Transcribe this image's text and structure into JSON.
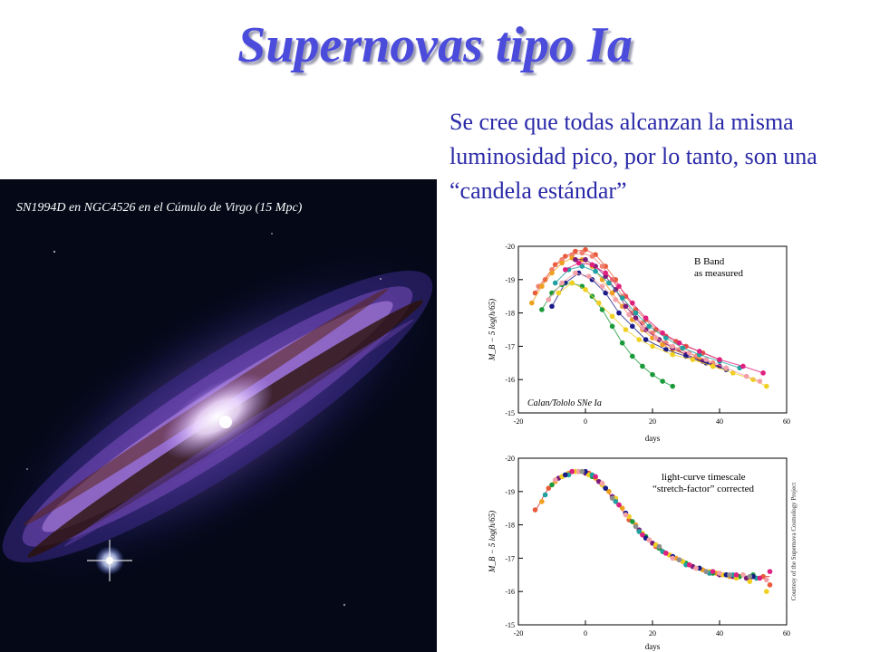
{
  "slide": {
    "title": "Supernovas tipo Ia",
    "intro": "Se cree que todas alcanzan la misma luminosidad pico, por lo tanto, son una “candela estándar”"
  },
  "galaxy_image": {
    "caption": "SN1994D en NGC4526 en el Cúmulo de Virgo (15 Mpc)"
  },
  "credit": "Courtesy of the Supernova Cosmology Project",
  "chart_data": [
    {
      "type": "scatter",
      "xlabel": "days",
      "ylabel": "M_B − 5 log(h/65)",
      "xlim": [
        -20,
        60
      ],
      "ylim": [
        -20,
        -15
      ],
      "y_inverted": true,
      "xticks": [
        "-20",
        "0",
        "20",
        "40",
        "60"
      ],
      "yticks": [
        "-20",
        "-19",
        "-18",
        "-17",
        "-16",
        "-15"
      ],
      "annotation": [
        "B Band",
        "as measured"
      ],
      "footer_label": "Calan/Tololo SNe Ia",
      "series": [
        {
          "color": "#e85a3c",
          "x": [
            -15,
            -12,
            -9,
            -6,
            -3,
            0,
            3,
            6,
            9,
            12,
            15,
            18,
            21,
            24,
            27,
            30,
            35,
            40
          ],
          "y": [
            -18.6,
            -19.0,
            -19.45,
            -19.7,
            -19.85,
            -19.9,
            -19.75,
            -19.4,
            -19.0,
            -18.5,
            -18.1,
            -17.8,
            -17.5,
            -17.3,
            -17.15,
            -17.0,
            -16.8,
            -16.6
          ]
        },
        {
          "color": "#f08070",
          "x": [
            -14,
            -10,
            -7,
            -4,
            -1,
            2,
            5,
            8,
            11,
            14,
            17,
            20,
            24,
            28,
            33,
            38
          ],
          "y": [
            -18.8,
            -19.3,
            -19.6,
            -19.75,
            -19.8,
            -19.7,
            -19.4,
            -19.0,
            -18.5,
            -18.0,
            -17.7,
            -17.4,
            -17.1,
            -16.9,
            -16.7,
            -16.5
          ]
        },
        {
          "color": "#f0a020",
          "x": [
            -16,
            -13,
            -10,
            -7,
            -4,
            -1,
            2,
            5,
            8,
            11,
            14,
            17,
            20,
            23,
            26,
            30,
            34,
            38
          ],
          "y": [
            -18.3,
            -18.8,
            -19.2,
            -19.5,
            -19.65,
            -19.6,
            -19.4,
            -19.0,
            -18.6,
            -18.2,
            -17.8,
            -17.5,
            -17.25,
            -17.05,
            -16.9,
            -16.75,
            -16.6,
            -16.4
          ]
        },
        {
          "color": "#7a1a7a",
          "x": [
            -3,
            0,
            3,
            6,
            9,
            12,
            15,
            18,
            22,
            26,
            30,
            35,
            40
          ],
          "y": [
            -19.6,
            -19.6,
            -19.4,
            -19.1,
            -18.7,
            -18.2,
            -17.85,
            -17.5,
            -17.2,
            -16.95,
            -16.75,
            -16.55,
            -16.4
          ]
        },
        {
          "color": "#1a1a8a",
          "x": [
            -10,
            -6,
            -2,
            2,
            6,
            10,
            14,
            18,
            24,
            30,
            36,
            42
          ],
          "y": [
            -18.2,
            -18.9,
            -19.2,
            -19.0,
            -18.6,
            -18.0,
            -17.6,
            -17.2,
            -16.9,
            -16.7,
            -16.5,
            -16.3
          ]
        },
        {
          "color": "#1a9a3a",
          "x": [
            -13,
            -10,
            -7,
            -4,
            -1,
            2,
            5,
            8,
            11,
            14,
            17,
            20,
            23,
            26
          ],
          "y": [
            -18.1,
            -18.6,
            -18.85,
            -18.9,
            -18.8,
            -18.5,
            -18.1,
            -17.6,
            -17.1,
            -16.7,
            -16.4,
            -16.15,
            -15.95,
            -15.8
          ]
        },
        {
          "color": "#f0d020",
          "x": [
            -8,
            -4,
            0,
            4,
            8,
            12,
            16,
            20,
            26,
            32,
            38,
            44,
            50,
            54
          ],
          "y": [
            -18.6,
            -18.9,
            -18.7,
            -18.3,
            -17.9,
            -17.5,
            -17.2,
            -17.0,
            -16.75,
            -16.6,
            -16.4,
            -16.2,
            -16.0,
            -15.8
          ]
        },
        {
          "color": "#f4a0a8",
          "x": [
            -11,
            -7,
            -3,
            1,
            5,
            9,
            13,
            17,
            21,
            26,
            31,
            36,
            42,
            48,
            52
          ],
          "y": [
            -18.4,
            -18.9,
            -19.2,
            -19.1,
            -18.8,
            -18.4,
            -17.95,
            -17.55,
            -17.25,
            -17.0,
            -16.8,
            -16.6,
            -16.35,
            -16.1,
            -15.95
          ]
        },
        {
          "color": "#20a0a0",
          "x": [
            -9,
            -5,
            -1,
            3,
            7,
            11,
            15,
            19,
            24,
            29,
            34,
            40,
            46
          ],
          "y": [
            -18.9,
            -19.3,
            -19.4,
            -19.25,
            -18.9,
            -18.45,
            -18.0,
            -17.6,
            -17.25,
            -16.95,
            -16.75,
            -16.55,
            -16.35
          ]
        },
        {
          "color": "#e02080",
          "x": [
            -6,
            -2,
            2,
            6,
            10,
            14,
            18,
            23,
            28,
            34,
            40,
            47,
            53
          ],
          "y": [
            -19.3,
            -19.5,
            -19.45,
            -19.2,
            -18.8,
            -18.3,
            -17.85,
            -17.4,
            -17.1,
            -16.85,
            -16.6,
            -16.4,
            -16.2
          ]
        }
      ]
    },
    {
      "type": "scatter",
      "xlabel": "days",
      "ylabel": "M_B − 5 log(h/65)",
      "xlim": [
        -20,
        60
      ],
      "ylim": [
        -20,
        -15
      ],
      "y_inverted": true,
      "xticks": [
        "-20",
        "0",
        "20",
        "40",
        "60"
      ],
      "yticks": [
        "-20",
        "-19",
        "-18",
        "-17",
        "-16",
        "-15"
      ],
      "annotation": [
        "light-curve timescale",
        "“stretch-factor” corrected"
      ],
      "curve": {
        "color": "#e05050",
        "x": [
          -15,
          -12,
          -9,
          -6,
          -3,
          0,
          3,
          6,
          9,
          12,
          15,
          18,
          21,
          24,
          27,
          30,
          34,
          38,
          42,
          46,
          50,
          55
        ],
        "y": [
          -18.4,
          -18.95,
          -19.35,
          -19.55,
          -19.62,
          -19.55,
          -19.35,
          -19.05,
          -18.7,
          -18.3,
          -17.95,
          -17.65,
          -17.4,
          -17.2,
          -17.0,
          -16.85,
          -16.7,
          -16.55,
          -16.5,
          -16.45,
          -16.45,
          -16.45
        ]
      },
      "series": [
        {
          "color": "#e85a3c",
          "x": [
            -15,
            -11,
            -7,
            -3,
            1,
            5,
            9,
            13,
            17,
            21,
            25,
            29,
            33,
            37,
            41,
            45,
            49,
            53,
            55
          ],
          "y": [
            -18.45,
            -19.1,
            -19.45,
            -19.6,
            -19.55,
            -19.2,
            -18.75,
            -18.15,
            -17.7,
            -17.35,
            -17.1,
            -16.9,
            -16.7,
            -16.55,
            -16.5,
            -16.45,
            -16.4,
            -16.45,
            -16.2
          ]
        },
        {
          "color": "#f0a020",
          "x": [
            -13,
            -9,
            -5,
            -1,
            3,
            7,
            11,
            15,
            19,
            23,
            27,
            31,
            35,
            39,
            43,
            47,
            51
          ],
          "y": [
            -18.7,
            -19.3,
            -19.55,
            -19.6,
            -19.4,
            -19.0,
            -18.5,
            -18.0,
            -17.55,
            -17.2,
            -17.0,
            -16.8,
            -16.65,
            -16.55,
            -16.45,
            -16.5,
            -16.4
          ]
        },
        {
          "color": "#7a1a7a",
          "x": [
            -8,
            -4,
            0,
            4,
            8,
            12,
            16,
            20,
            24,
            28,
            32,
            36,
            40,
            44,
            48
          ],
          "y": [
            -19.4,
            -19.6,
            -19.55,
            -19.3,
            -18.85,
            -18.35,
            -17.85,
            -17.45,
            -17.15,
            -16.95,
            -16.75,
            -16.6,
            -16.5,
            -16.45,
            -16.4
          ]
        },
        {
          "color": "#1a9a3a",
          "x": [
            -10,
            -6,
            -2,
            2,
            6,
            10,
            14,
            18,
            22,
            26,
            30,
            34,
            38,
            42,
            46,
            50
          ],
          "y": [
            -19.2,
            -19.5,
            -19.6,
            -19.45,
            -19.1,
            -18.6,
            -18.1,
            -17.65,
            -17.3,
            -17.05,
            -16.85,
            -16.7,
            -16.55,
            -16.5,
            -16.45,
            -16.5
          ]
        },
        {
          "color": "#f0d020",
          "x": [
            -7,
            -3,
            1,
            5,
            9,
            13,
            17,
            21,
            25,
            29,
            33,
            37,
            41,
            45,
            49,
            54
          ],
          "y": [
            -19.45,
            -19.6,
            -19.5,
            -19.2,
            -18.8,
            -18.25,
            -17.75,
            -17.4,
            -17.1,
            -16.9,
            -16.7,
            -16.6,
            -16.5,
            -16.4,
            -16.3,
            -16.0
          ]
        },
        {
          "color": "#20a0a0",
          "x": [
            -12,
            -5,
            2,
            9,
            16,
            23,
            30,
            37,
            44,
            51
          ],
          "y": [
            -18.9,
            -19.5,
            -19.5,
            -18.7,
            -17.8,
            -17.2,
            -16.8,
            -16.55,
            -16.5,
            -16.4
          ]
        },
        {
          "color": "#e02080",
          "x": [
            -4,
            3,
            10,
            17,
            24,
            31,
            38,
            45,
            52,
            55
          ],
          "y": [
            -19.6,
            -19.45,
            -18.6,
            -17.7,
            -17.15,
            -16.8,
            -16.6,
            -16.5,
            -16.4,
            -16.6
          ]
        },
        {
          "color": "#1a1a8a",
          "x": [
            -6,
            0,
            6,
            12,
            18,
            26,
            34,
            42,
            50
          ],
          "y": [
            -19.5,
            -19.6,
            -19.1,
            -18.35,
            -17.6,
            -17.05,
            -16.7,
            -16.5,
            -16.45
          ]
        },
        {
          "color": "#f4a0a8",
          "x": [
            -9,
            -2,
            5,
            12,
            19,
            26,
            33,
            40,
            47,
            54
          ],
          "y": [
            -19.35,
            -19.6,
            -19.25,
            -18.3,
            -17.55,
            -17.0,
            -16.7,
            -16.55,
            -16.5,
            -16.35
          ]
        },
        {
          "color": "#909090",
          "x": [
            -1,
            8,
            15,
            22,
            28,
            36,
            43,
            49
          ],
          "y": [
            -19.6,
            -18.8,
            -17.95,
            -17.35,
            -16.95,
            -16.6,
            -16.5,
            -16.45
          ]
        }
      ]
    }
  ]
}
